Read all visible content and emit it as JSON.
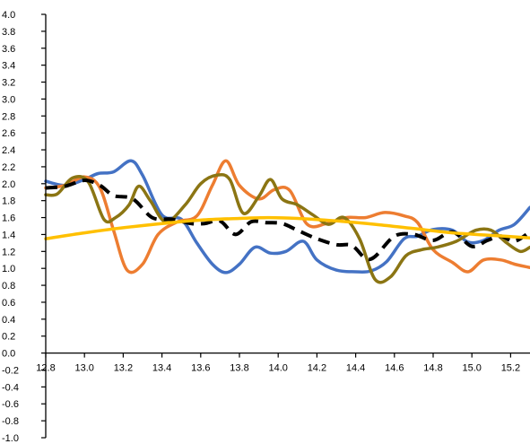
{
  "chart_data": {
    "type": "line",
    "title": "",
    "xlabel": "",
    "ylabel": "",
    "xlim": [
      12.8,
      15.3
    ],
    "ylim": [
      -1.0,
      4.0
    ],
    "grid": false,
    "legend": "none",
    "y_ticks": [
      "-1.0",
      "-0.8",
      "-0.6",
      "-0.4",
      "-0.2",
      "0.0",
      "0.2",
      "0.4",
      "0.6",
      "0.8",
      "1.0",
      "1.2",
      "1.4",
      "1.6",
      "1.8",
      "2.0",
      "2.2",
      "2.4",
      "2.6",
      "2.8",
      "3.0",
      "3.2",
      "3.4",
      "3.6",
      "3.8",
      "4.0"
    ],
    "x_ticks": [
      "12.8",
      "13.0",
      "13.2",
      "13.4",
      "13.6",
      "13.8",
      "14.0",
      "14.2",
      "14.4",
      "14.6",
      "14.8",
      "15.0",
      "15.2"
    ],
    "series": [
      {
        "color": "#4472C4",
        "dash": "solid",
        "x": [
          12.8,
          12.9,
          13.0,
          13.07,
          13.15,
          13.24,
          13.3,
          13.4,
          13.5,
          13.58,
          13.66,
          13.73,
          13.8,
          13.88,
          13.96,
          14.04,
          14.13,
          14.2,
          14.3,
          14.4,
          14.48,
          14.56,
          14.65,
          14.72,
          14.8,
          14.9,
          14.98,
          15.06,
          15.14,
          15.22,
          15.3
        ],
        "y": [
          2.03,
          1.98,
          2.05,
          2.12,
          2.14,
          2.27,
          2.1,
          1.63,
          1.58,
          1.3,
          1.05,
          0.95,
          1.05,
          1.25,
          1.18,
          1.2,
          1.32,
          1.1,
          0.98,
          0.96,
          0.97,
          1.08,
          1.35,
          1.38,
          1.46,
          1.45,
          1.31,
          1.33,
          1.45,
          1.52,
          1.72
        ]
      },
      {
        "color": "#ED7D31",
        "dash": "solid",
        "x": [
          12.8,
          12.9,
          13.0,
          13.08,
          13.15,
          13.22,
          13.3,
          13.38,
          13.48,
          13.58,
          13.66,
          13.73,
          13.8,
          13.9,
          13.98,
          14.06,
          14.15,
          14.25,
          14.35,
          14.45,
          14.55,
          14.65,
          14.72,
          14.8,
          14.9,
          14.98,
          15.06,
          15.15,
          15.22,
          15.3
        ],
        "y": [
          1.95,
          1.98,
          2.08,
          1.95,
          1.45,
          0.98,
          1.05,
          1.4,
          1.55,
          1.62,
          1.98,
          2.27,
          1.98,
          1.82,
          1.93,
          1.92,
          1.52,
          1.53,
          1.6,
          1.6,
          1.66,
          1.62,
          1.54,
          1.22,
          1.07,
          0.96,
          1.1,
          1.1,
          1.05,
          1.01
        ]
      },
      {
        "color": "#8B7513",
        "dash": "solid",
        "x": [
          12.8,
          12.86,
          12.94,
          13.02,
          13.1,
          13.16,
          13.23,
          13.28,
          13.34,
          13.42,
          13.52,
          13.6,
          13.68,
          13.75,
          13.82,
          13.9,
          13.96,
          14.02,
          14.1,
          14.18,
          14.26,
          14.34,
          14.42,
          14.5,
          14.58,
          14.66,
          14.74,
          14.82,
          14.92,
          15.02,
          15.1,
          15.18,
          15.25,
          15.3
        ],
        "y": [
          1.87,
          1.88,
          2.07,
          2.02,
          1.58,
          1.6,
          1.75,
          1.97,
          1.8,
          1.55,
          1.75,
          2.0,
          2.1,
          2.05,
          1.65,
          1.85,
          2.05,
          1.82,
          1.75,
          1.63,
          1.52,
          1.6,
          1.35,
          0.87,
          0.9,
          1.15,
          1.22,
          1.25,
          1.32,
          1.45,
          1.45,
          1.3,
          1.2,
          1.25
        ]
      },
      {
        "color": "#000000",
        "dash": "dashed",
        "x": [
          12.8,
          12.9,
          13.0,
          13.08,
          13.15,
          13.25,
          13.35,
          13.45,
          13.55,
          13.62,
          13.7,
          13.78,
          13.86,
          13.94,
          14.02,
          14.1,
          14.2,
          14.3,
          14.38,
          14.45,
          14.5,
          14.6,
          14.7,
          14.8,
          14.9,
          15.0,
          15.08,
          15.15,
          15.22,
          15.3
        ],
        "y": [
          1.95,
          1.97,
          2.04,
          1.98,
          1.86,
          1.82,
          1.6,
          1.58,
          1.53,
          1.53,
          1.56,
          1.4,
          1.55,
          1.54,
          1.53,
          1.45,
          1.35,
          1.28,
          1.27,
          1.12,
          1.14,
          1.38,
          1.4,
          1.33,
          1.43,
          1.26,
          1.33,
          1.38,
          1.32,
          1.43
        ]
      },
      {
        "color": "#FFC000",
        "dash": "solid",
        "x": [
          12.8,
          13.0,
          13.2,
          13.4,
          13.6,
          13.8,
          13.95,
          14.1,
          14.3,
          14.5,
          14.7,
          14.9,
          15.1,
          15.3
        ],
        "y": [
          1.35,
          1.42,
          1.48,
          1.53,
          1.57,
          1.59,
          1.6,
          1.59,
          1.56,
          1.52,
          1.47,
          1.42,
          1.39,
          1.36
        ]
      }
    ]
  }
}
